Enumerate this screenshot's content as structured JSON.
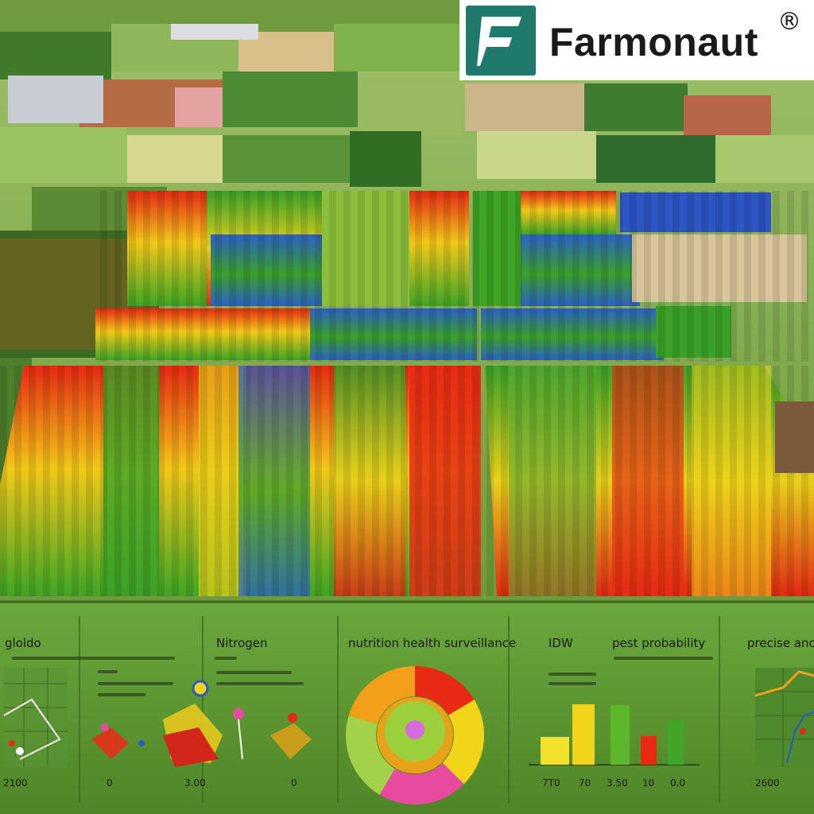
{
  "brand": {
    "name": "Farmonaut",
    "registered_mark": "®",
    "logo_color": "#1f7a6c"
  },
  "dashboard": {
    "panel_titles": [
      "gloldo",
      "Nitrogen",
      "nutrition health surveillance",
      "IDW",
      "pest probability",
      "precise and"
    ],
    "axis_labels": [
      "2100",
      "0",
      "3.00",
      "0",
      "7T0",
      "70",
      "3.50",
      "10",
      "0.0",
      "2600"
    ]
  },
  "colors": {
    "panel_green": "#5f9a35",
    "red": "#e82a14",
    "yellow": "#f2d41a",
    "green": "#3fa629",
    "blue": "#2c56c9"
  }
}
